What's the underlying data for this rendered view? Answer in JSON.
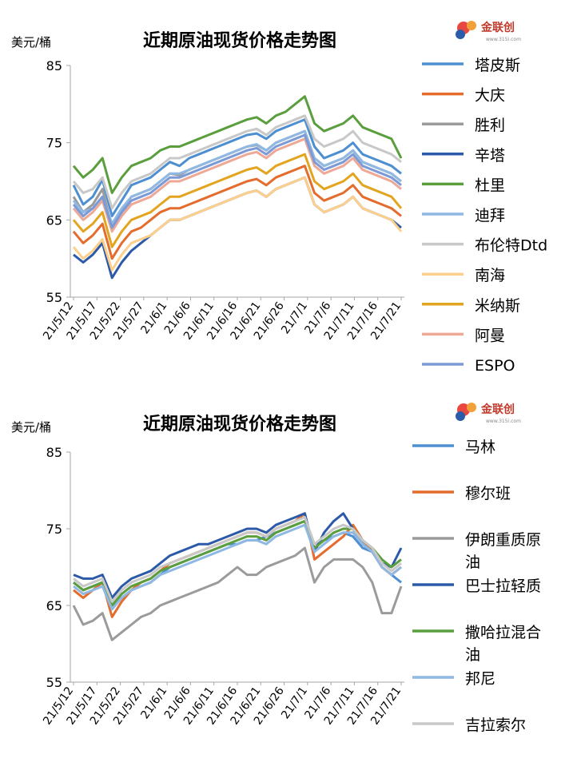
{
  "brand": {
    "logo_text": "金联创",
    "logo_sub": "www.315i.com",
    "colors": [
      "#e8483f",
      "#f2a13a",
      "#2a5caa"
    ]
  },
  "chart_data": [
    {
      "type": "line",
      "title": "近期原油现货价格走势图",
      "ylabel": "美元/桶",
      "ylim": [
        55,
        85
      ],
      "yticks": [
        "55",
        "65",
        "75",
        "85"
      ],
      "grid": false,
      "legend_position": "right",
      "tick_labels": [
        "21/5/12",
        "21/5/17",
        "21/5/22",
        "21/5/27",
        "21/6/1",
        "21/6/6",
        "21/6/11",
        "21/6/16",
        "21/6/21",
        "21/6/26",
        "21/7/1",
        "21/7/6",
        "21/7/11",
        "21/7/16",
        "21/7/21"
      ],
      "series": [
        {
          "name": "塔皮斯",
          "color": "#4d8fd0",
          "values": [
            69.5,
            67,
            68,
            70.2,
            65.5,
            67.5,
            69.5,
            70,
            70.5,
            71.5,
            72.5,
            72,
            73,
            73.5,
            74,
            74.5,
            75,
            75.5,
            76,
            76.2,
            75.5,
            76.5,
            77,
            77.5,
            78,
            74.5,
            73,
            73.5,
            74,
            75,
            73.5,
            73,
            72.5,
            72,
            71
          ]
        },
        {
          "name": "大庆",
          "color": "#e46c2c",
          "values": [
            63.5,
            62,
            63,
            64.5,
            60,
            62,
            63.5,
            64,
            65,
            66,
            66.5,
            66.5,
            67,
            67.5,
            68,
            68.5,
            69,
            69.5,
            70,
            70.3,
            69.5,
            70.5,
            71,
            71.5,
            72,
            68.5,
            67.5,
            68,
            68.5,
            69.5,
            68,
            67.5,
            67,
            66.5,
            65.5
          ]
        },
        {
          "name": "胜利",
          "color": "#9b9b9b",
          "values": [
            68,
            66,
            67,
            69,
            64,
            66,
            68,
            68.5,
            69,
            70,
            71,
            70.8,
            71.5,
            72,
            72.5,
            73,
            73.5,
            74,
            74.5,
            74.7,
            74,
            75,
            75.5,
            76,
            76.5,
            73,
            72,
            72.5,
            73,
            74,
            72.5,
            72,
            71.5,
            71,
            70
          ]
        },
        {
          "name": "辛塔",
          "color": "#2d5aa8",
          "values": [
            60.5,
            59.5,
            60.5,
            62,
            57.5,
            59.5,
            61,
            62,
            63,
            64,
            65,
            65,
            65.5,
            66,
            66.5,
            67,
            67.5,
            68,
            68.5,
            68.8,
            68,
            69,
            69.5,
            70,
            70.5,
            67,
            66,
            66.5,
            67,
            68,
            66.5,
            66,
            65.5,
            65,
            64
          ]
        },
        {
          "name": "杜里",
          "color": "#5a9e3e",
          "values": [
            72,
            70.5,
            71.5,
            73,
            68.5,
            70.5,
            72,
            72.5,
            73,
            74,
            74.5,
            74.5,
            75,
            75.5,
            76,
            76.5,
            77,
            77.5,
            78,
            78.3,
            77.5,
            78.5,
            79,
            80,
            81,
            77.5,
            76.5,
            77,
            77.5,
            78.5,
            77,
            76.5,
            76,
            75.5,
            73
          ]
        },
        {
          "name": "迪拜",
          "color": "#8fb8e3",
          "values": [
            67.5,
            66,
            66.5,
            68,
            64.5,
            66.5,
            68,
            68.5,
            69,
            70,
            71,
            71,
            71.5,
            72,
            72.5,
            73,
            73.5,
            74,
            74.5,
            74.8,
            74,
            75,
            75.5,
            76,
            76.5,
            73,
            72,
            72.5,
            73,
            74,
            72.5,
            72,
            71.5,
            71,
            70
          ]
        },
        {
          "name": "布伦特Dtd",
          "color": "#c8c8c8",
          "values": [
            70,
            68.5,
            69,
            70.5,
            66.5,
            68.5,
            70,
            70.5,
            71,
            72,
            73,
            73,
            73.5,
            74,
            74.5,
            75,
            75.5,
            76,
            76.5,
            76.8,
            76,
            77,
            77.5,
            78,
            78.5,
            75.5,
            74.5,
            75,
            75.5,
            76.5,
            75,
            74.5,
            74,
            73.5,
            72.5
          ]
        },
        {
          "name": "南海",
          "color": "#fcd08c",
          "values": [
            61.5,
            60,
            61,
            62.5,
            58.5,
            60.5,
            62,
            62.5,
            63,
            64,
            65,
            65,
            65.5,
            66,
            66.5,
            67,
            67.5,
            68,
            68.5,
            68.8,
            68,
            69,
            69.5,
            70,
            70.5,
            67,
            66,
            66.5,
            67,
            68,
            66.5,
            66,
            65.5,
            65,
            63.5
          ]
        },
        {
          "name": "米纳斯",
          "color": "#e3a520",
          "values": [
            65,
            63.5,
            64.5,
            66,
            61.5,
            63.5,
            65,
            65.5,
            66,
            67,
            68,
            68,
            68.5,
            69,
            69.5,
            70,
            70.5,
            71,
            71.5,
            71.8,
            71,
            72,
            72.5,
            73,
            73.5,
            70,
            69,
            69.5,
            70,
            71,
            69.5,
            69,
            68.5,
            68,
            66.5
          ]
        },
        {
          "name": "阿曼",
          "color": "#eea896",
          "values": [
            66.5,
            65,
            66,
            67.5,
            63.5,
            65.5,
            67,
            67.5,
            68,
            69,
            70,
            70,
            70.5,
            71,
            71.5,
            72,
            72.5,
            73,
            73.5,
            73.8,
            73,
            74,
            74.5,
            75,
            75.5,
            72,
            71,
            71.5,
            72,
            73,
            71.5,
            71,
            70.5,
            70,
            69
          ]
        },
        {
          "name": "ESPO",
          "color": "#7b9ad6",
          "values": [
            67,
            65.5,
            66.5,
            68,
            64,
            66,
            67.5,
            68,
            68.5,
            69.5,
            70.5,
            70.5,
            71,
            71.5,
            72,
            72.5,
            73,
            73.5,
            74,
            74.3,
            73.5,
            74.5,
            75,
            75.5,
            76,
            72.5,
            71.5,
            72,
            72.5,
            73.5,
            72,
            71.5,
            71,
            70.5,
            69.5
          ]
        }
      ]
    },
    {
      "type": "line",
      "title": "近期原油现货价格走势图",
      "ylabel": "美元/桶",
      "ylim": [
        55,
        85
      ],
      "yticks": [
        "55",
        "65",
        "75",
        "85"
      ],
      "grid": false,
      "legend_position": "right",
      "tick_labels": [
        "21/5/12",
        "21/5/17",
        "21/5/22",
        "21/5/27",
        "21/6/1",
        "21/6/6",
        "21/6/11",
        "21/6/16",
        "21/6/21",
        "21/6/26",
        "21/7/1",
        "21/7/6",
        "21/7/11",
        "21/7/16",
        "21/7/21"
      ],
      "series": [
        {
          "name": "马林",
          "color": "#4d8fd0",
          "values": [
            68,
            67,
            67.5,
            68,
            65,
            66,
            67,
            67.5,
            68,
            69,
            70,
            70.5,
            71,
            71.5,
            72,
            72.5,
            73,
            73,
            73.5,
            73.5,
            74,
            74.5,
            75,
            75.5,
            76,
            73,
            73.5,
            74,
            74.5,
            74,
            72.5,
            72,
            70,
            69,
            68
          ]
        },
        {
          "name": "穆尔班",
          "color": "#e46c2c",
          "values": [
            67,
            66,
            67,
            68,
            63.5,
            65.5,
            67,
            68,
            68.5,
            69.5,
            70.5,
            71,
            71.5,
            72,
            72.5,
            73,
            73.5,
            74,
            74.5,
            74.5,
            74,
            75,
            75.5,
            76,
            77,
            71,
            72,
            73,
            74,
            75.5,
            73.5,
            72,
            70,
            69,
            70
          ]
        },
        {
          "name": "伊朗重质原油",
          "color": "#9b9b9b",
          "values": [
            65,
            62.5,
            63,
            64,
            60.5,
            61.5,
            62.5,
            63.5,
            64,
            65,
            65.5,
            66,
            66.5,
            67,
            67.5,
            68,
            69,
            70,
            69,
            69,
            70,
            70.5,
            71,
            71.5,
            72.5,
            68,
            70,
            71,
            71,
            71,
            70,
            68,
            64,
            64,
            67.5
          ]
        },
        {
          "name": "巴士拉轻质",
          "color": "#2d5aa8",
          "values": [
            69,
            68.5,
            68.5,
            69,
            66,
            67.5,
            68.5,
            69,
            69.5,
            70.5,
            71.5,
            72,
            72.5,
            73,
            73,
            73.5,
            74,
            74.5,
            75,
            75,
            74.5,
            75.5,
            76,
            76.5,
            77,
            72,
            74.5,
            76,
            77,
            75,
            73,
            72,
            70.5,
            70,
            72.5
          ]
        },
        {
          "name": "撒哈拉混合油",
          "color": "#5a9e3e",
          "values": [
            68,
            67,
            67.5,
            68,
            65,
            66.5,
            67.5,
            68,
            68.5,
            69.5,
            70,
            70.5,
            71,
            71.5,
            72,
            72.5,
            73,
            73.5,
            74,
            74,
            73.5,
            74.5,
            75,
            75.5,
            76,
            72.5,
            73.5,
            74.5,
            75,
            75,
            73.5,
            72.5,
            71,
            70,
            71
          ]
        },
        {
          "name": "邦尼",
          "color": "#8fb8e3",
          "values": [
            67.5,
            66.5,
            67,
            67.5,
            64.5,
            66,
            67,
            67.5,
            68,
            69,
            69.5,
            70,
            70.5,
            71,
            71.5,
            72,
            72.5,
            73,
            73.5,
            73.5,
            73,
            74,
            74.5,
            75,
            75.5,
            72,
            73,
            74,
            74.5,
            74.5,
            73,
            72,
            70,
            69,
            70
          ]
        },
        {
          "name": "吉拉索尔",
          "color": "#c8c8c8",
          "values": [
            68.5,
            67.5,
            68,
            68.5,
            65.5,
            67,
            68,
            68.5,
            69,
            70,
            70.5,
            71,
            71.5,
            72,
            72.5,
            73,
            73.5,
            74,
            74.5,
            74.5,
            74,
            75,
            75.5,
            76,
            76.5,
            73,
            74,
            75,
            75.5,
            75,
            73.5,
            72.5,
            70.5,
            69.5,
            70.5
          ]
        }
      ]
    }
  ]
}
